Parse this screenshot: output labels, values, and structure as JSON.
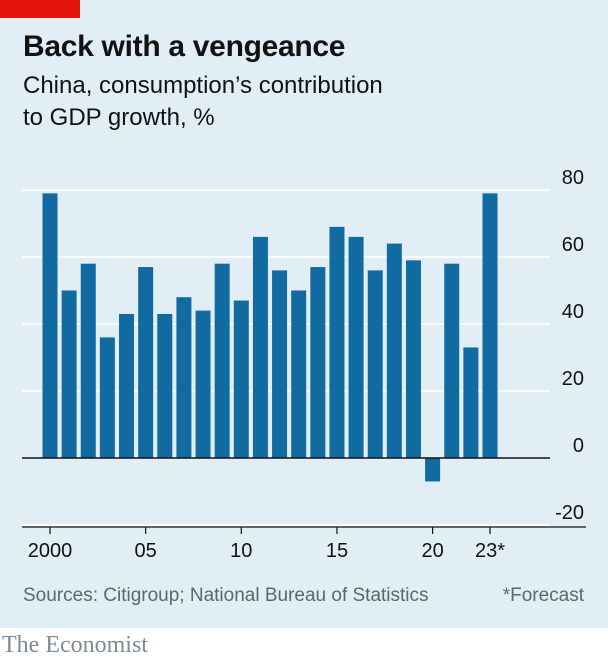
{
  "title": "Back with a vengeance",
  "subtitle_line1": "China, consumption’s contribution",
  "subtitle_line2": "to GDP growth, %",
  "sources": "Sources: Citigroup; National Bureau of Statistics",
  "footnote": "*Forecast",
  "brand": "The Economist",
  "colors": {
    "background": "#e1eef5",
    "bar": "#116ba0",
    "accent": "#e3120b",
    "grid": "#ffffff",
    "zero_line": "#121212"
  },
  "chart_data": {
    "type": "bar",
    "title": "Back with a vengeance",
    "subtitle": "China, consumption’s contribution to GDP growth, %",
    "categories": [
      "2000",
      "2001",
      "2002",
      "2003",
      "2004",
      "2005",
      "2006",
      "2007",
      "2008",
      "2009",
      "2010",
      "2011",
      "2012",
      "2013",
      "2014",
      "2015",
      "2016",
      "2017",
      "2018",
      "2019",
      "2020",
      "2021",
      "2022",
      "2023*"
    ],
    "values": [
      79,
      50,
      58,
      36,
      43,
      57,
      43,
      48,
      44,
      58,
      47,
      66,
      56,
      50,
      57,
      69,
      66,
      56,
      64,
      59,
      -7,
      58,
      33,
      79
    ],
    "x_tick_labels": [
      {
        "category": "2000",
        "label": "2000"
      },
      {
        "category": "2005",
        "label": "05"
      },
      {
        "category": "2010",
        "label": "10"
      },
      {
        "category": "2015",
        "label": "15"
      },
      {
        "category": "2020",
        "label": "20"
      },
      {
        "category": "2023*",
        "label": "23*"
      }
    ],
    "y_ticks": [
      80,
      60,
      40,
      20,
      0,
      -20
    ],
    "ylim": [
      -20,
      80
    ],
    "grid": true,
    "xlabel": "",
    "ylabel": ""
  }
}
